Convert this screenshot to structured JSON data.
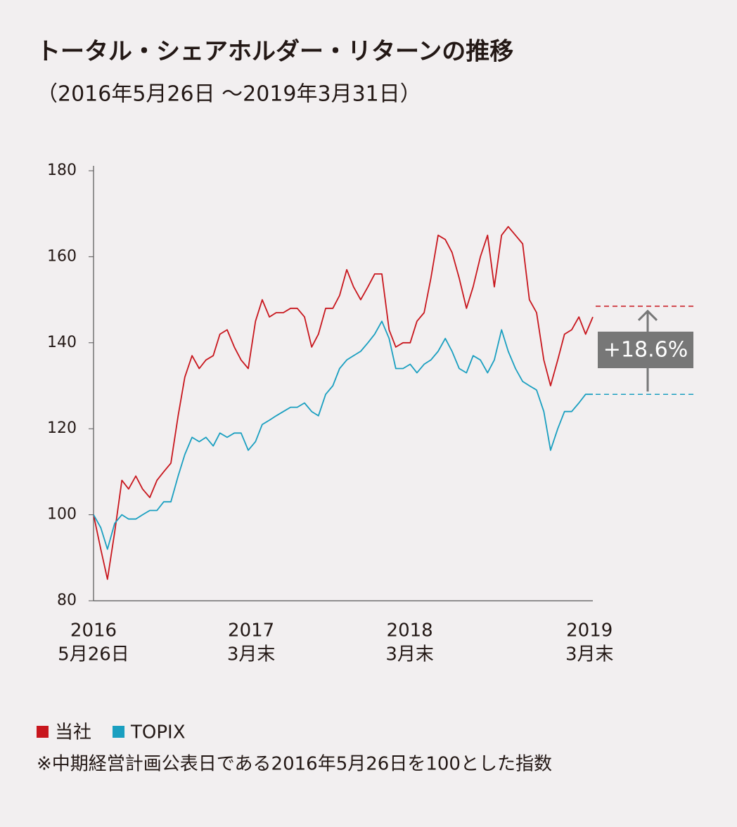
{
  "chart_data": {
    "type": "line",
    "title": "トータル・シェアホルダー・リターンの推移",
    "subtitle": "（2016年5月26日 〜2019年3月31日）",
    "x": [
      0,
      15,
      29,
      44,
      59,
      73,
      88,
      102,
      117,
      132,
      146,
      161,
      176,
      190,
      205,
      220,
      234,
      249,
      263,
      278,
      293,
      307,
      322,
      337,
      351,
      366,
      380,
      395,
      410,
      424,
      439,
      454,
      468,
      483,
      498,
      512,
      527,
      541,
      556,
      571,
      585,
      600,
      615,
      629,
      644,
      659,
      673,
      688,
      702,
      717,
      732,
      746,
      761,
      776,
      790,
      805,
      820,
      834,
      849,
      863,
      878,
      893,
      907,
      922,
      937,
      951,
      966,
      980,
      995,
      1010,
      1024,
      1039
    ],
    "xlim": [
      0,
      1039
    ],
    "xticks": [
      {
        "value": 0,
        "label": "2016",
        "sublabel": "5月26日"
      },
      {
        "value": 328,
        "label": "2017",
        "sublabel": "3月末"
      },
      {
        "value": 658,
        "label": "2018",
        "sublabel": "3月末"
      },
      {
        "value": 1032,
        "label": "2019",
        "sublabel": "3月末"
      }
    ],
    "ylim": [
      80,
      180
    ],
    "yticks": [
      80,
      100,
      120,
      140,
      160,
      180
    ],
    "series": [
      {
        "name": "当社",
        "color": "#c8161d",
        "values": [
          100,
          92,
          85,
          96,
          108,
          106,
          109,
          106,
          104,
          108,
          110,
          112,
          123,
          132,
          137,
          134,
          136,
          137,
          142,
          143,
          139,
          136,
          134,
          145,
          150,
          146,
          147,
          147,
          148,
          148,
          146,
          139,
          142,
          148,
          148,
          151,
          157,
          153,
          150,
          153,
          156,
          156,
          143,
          139,
          140,
          140,
          145,
          147,
          155,
          165,
          164,
          161,
          155,
          148,
          153,
          160,
          165,
          153,
          165,
          167,
          165,
          163,
          150,
          147,
          136,
          130,
          136,
          142,
          143,
          146,
          142,
          146
        ]
      },
      {
        "name": "TOPIX",
        "color": "#1a9fc0",
        "values": [
          100,
          97,
          92,
          98,
          100,
          99,
          99,
          100,
          101,
          101,
          103,
          103,
          109,
          114,
          118,
          117,
          118,
          116,
          119,
          118,
          119,
          119,
          115,
          117,
          121,
          122,
          123,
          124,
          125,
          125,
          126,
          124,
          123,
          128,
          130,
          134,
          136,
          137,
          138,
          140,
          142,
          145,
          141,
          134,
          134,
          135,
          133,
          135,
          136,
          138,
          141,
          138,
          134,
          133,
          137,
          136,
          133,
          136,
          143,
          138,
          134,
          131,
          130,
          129,
          124,
          115,
          120,
          124,
          124,
          126,
          128,
          128
        ]
      }
    ],
    "annotation": {
      "text": "+18.6%",
      "levels": [
        148.5,
        128.0
      ]
    },
    "legend_marker_colors": [
      "#c8161d",
      "#1a9fc0"
    ],
    "footnote": "※中期経営計画公表日である2016年5月26日を100とした指数"
  }
}
